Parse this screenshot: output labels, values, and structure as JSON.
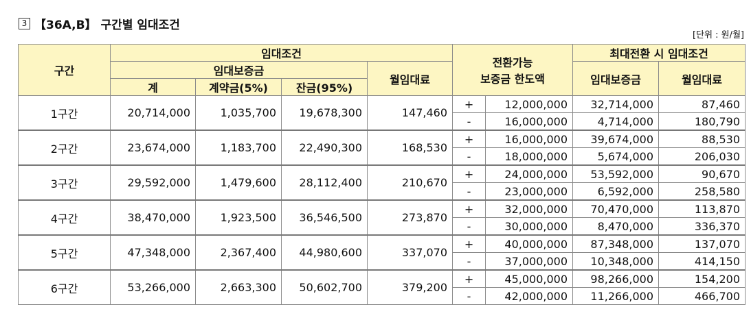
{
  "heading": {
    "number": "3",
    "tag": "【36A,B】",
    "title": "구간별 임대조건",
    "unit": "[단위 : 원/월]"
  },
  "table": {
    "headers": {
      "section": "구간",
      "lease_conditions": "임대조건",
      "deposit": "임대보증금",
      "total": "계",
      "contract": "계약금(5%)",
      "balance": "잔금(95%)",
      "monthly_rent": "월임대료",
      "convertible_line1": "전환가능",
      "convertible_line2": "보증금 한도액",
      "max_conversion": "최대전환 시 임대조건",
      "max_deposit": "임대보증금",
      "max_rent": "월임대료"
    },
    "rows": [
      {
        "section": "1구간",
        "total": "20,714,000",
        "contract": "1,035,700",
        "balance": "19,678,300",
        "rent": "147,460",
        "plus": {
          "sign": "+",
          "limit": "12,000,000",
          "deposit": "32,714,000",
          "rent": "87,460"
        },
        "minus": {
          "sign": "-",
          "limit": "16,000,000",
          "deposit": "4,714,000",
          "rent": "180,790"
        }
      },
      {
        "section": "2구간",
        "total": "23,674,000",
        "contract": "1,183,700",
        "balance": "22,490,300",
        "rent": "168,530",
        "plus": {
          "sign": "+",
          "limit": "16,000,000",
          "deposit": "39,674,000",
          "rent": "88,530"
        },
        "minus": {
          "sign": "-",
          "limit": "18,000,000",
          "deposit": "5,674,000",
          "rent": "206,030"
        }
      },
      {
        "section": "3구간",
        "total": "29,592,000",
        "contract": "1,479,600",
        "balance": "28,112,400",
        "rent": "210,670",
        "plus": {
          "sign": "+",
          "limit": "24,000,000",
          "deposit": "53,592,000",
          "rent": "90,670"
        },
        "minus": {
          "sign": "-",
          "limit": "23,000,000",
          "deposit": "6,592,000",
          "rent": "258,580"
        }
      },
      {
        "section": "4구간",
        "total": "38,470,000",
        "contract": "1,923,500",
        "balance": "36,546,500",
        "rent": "273,870",
        "plus": {
          "sign": "+",
          "limit": "32,000,000",
          "deposit": "70,470,000",
          "rent": "113,870"
        },
        "minus": {
          "sign": "-",
          "limit": "30,000,000",
          "deposit": "8,470,000",
          "rent": "336,370"
        }
      },
      {
        "section": "5구간",
        "total": "47,348,000",
        "contract": "2,367,400",
        "balance": "44,980,600",
        "rent": "337,070",
        "plus": {
          "sign": "+",
          "limit": "40,000,000",
          "deposit": "87,348,000",
          "rent": "137,070"
        },
        "minus": {
          "sign": "-",
          "limit": "37,000,000",
          "deposit": "10,348,000",
          "rent": "414,150"
        }
      },
      {
        "section": "6구간",
        "total": "53,266,000",
        "contract": "2,663,300",
        "balance": "50,602,700",
        "rent": "379,200",
        "plus": {
          "sign": "+",
          "limit": "45,000,000",
          "deposit": "98,266,000",
          "rent": "154,200"
        },
        "minus": {
          "sign": "-",
          "limit": "42,000,000",
          "deposit": "11,266,000",
          "rent": "466,700"
        }
      }
    ]
  }
}
